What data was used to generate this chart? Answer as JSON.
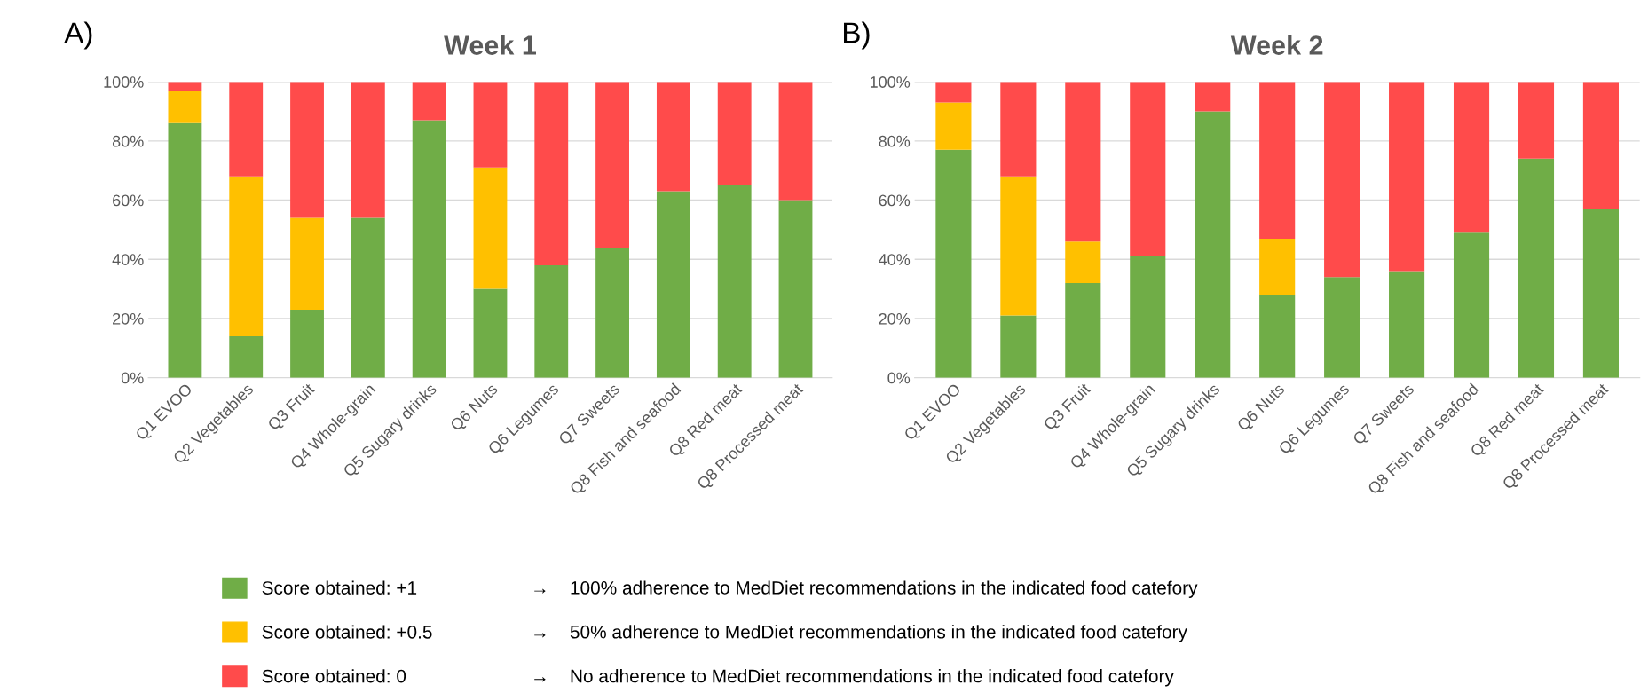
{
  "chart_data": [
    {
      "type": "bar",
      "stacked": true,
      "title": "Week 1",
      "legend": "bottom",
      "grid": "y",
      "categories": [
        "Q1 EVOO",
        "Q2 Vegetables",
        "Q3 Fruit",
        "Q4 Whole-grain",
        "Q5 Sugary drinks",
        "Q6 Nuts",
        "Q6 Legumes",
        "Q7 Sweets",
        "Q8 Fish and seafood",
        "Q8 Red meat",
        "Q8 Processed meat"
      ],
      "ylim": [
        0,
        100
      ],
      "yticks": [
        {
          "value": 0,
          "label": "0%"
        },
        {
          "value": 20,
          "label": "20%"
        },
        {
          "value": 40,
          "label": "40%"
        },
        {
          "value": 60,
          "label": "60%"
        },
        {
          "value": 80,
          "label": "80%"
        },
        {
          "value": 100,
          "label": "100%"
        }
      ],
      "series": [
        {
          "name": "Score obtained: +1",
          "color": "#70ad47",
          "values": [
            86,
            14,
            23,
            54,
            87,
            30,
            38,
            44,
            63,
            65,
            60
          ]
        },
        {
          "name": "Score obtained: +0.5",
          "color": "#ffc000",
          "values": [
            11,
            54,
            31,
            0,
            0,
            41,
            0,
            0,
            0,
            0,
            0
          ]
        },
        {
          "name": "Score obtained: 0",
          "color": "#ff4b4b",
          "values": [
            3,
            32,
            46,
            46,
            13,
            29,
            62,
            56,
            37,
            35,
            40
          ]
        }
      ],
      "annotations": [
        "A)",
        "→    100% adherence to MedDiet recommendations in the indicated food catefory",
        "→    50% adherence to MedDiet recommendations in the indicated food catefory",
        "→    No adherence to MedDiet recommendations in the indicated food catefory"
      ]
    },
    {
      "type": "bar",
      "stacked": true,
      "title": "Week 2",
      "grid": "y",
      "categories": [
        "Q1 EVOO",
        "Q2 Vegetables",
        "Q3 Fruit",
        "Q4 Whole-grain",
        "Q5 Sugary drinks",
        "Q6 Nuts",
        "Q6 Legumes",
        "Q7 Sweets",
        "Q8 Fish and seafood",
        "Q8 Red meat",
        "Q8 Processed meat"
      ],
      "ylim": [
        0,
        100
      ],
      "yticks": [
        {
          "value": 0,
          "label": "0%"
        },
        {
          "value": 20,
          "label": "20%"
        },
        {
          "value": 40,
          "label": "40%"
        },
        {
          "value": 60,
          "label": "60%"
        },
        {
          "value": 80,
          "label": "80%"
        },
        {
          "value": 100,
          "label": "100%"
        }
      ],
      "series": [
        {
          "color": "#70ad47",
          "values": [
            77,
            21,
            32,
            41,
            90,
            28,
            34,
            36,
            49,
            74,
            57
          ]
        },
        {
          "color": "#ffc000",
          "values": [
            16,
            47,
            14,
            0,
            0,
            19,
            0,
            0,
            0,
            0,
            0
          ]
        },
        {
          "color": "#ff4b4b",
          "values": [
            7,
            32,
            54,
            59,
            10,
            53,
            66,
            64,
            51,
            26,
            43
          ]
        }
      ],
      "annotations": [
        "B)"
      ]
    }
  ]
}
